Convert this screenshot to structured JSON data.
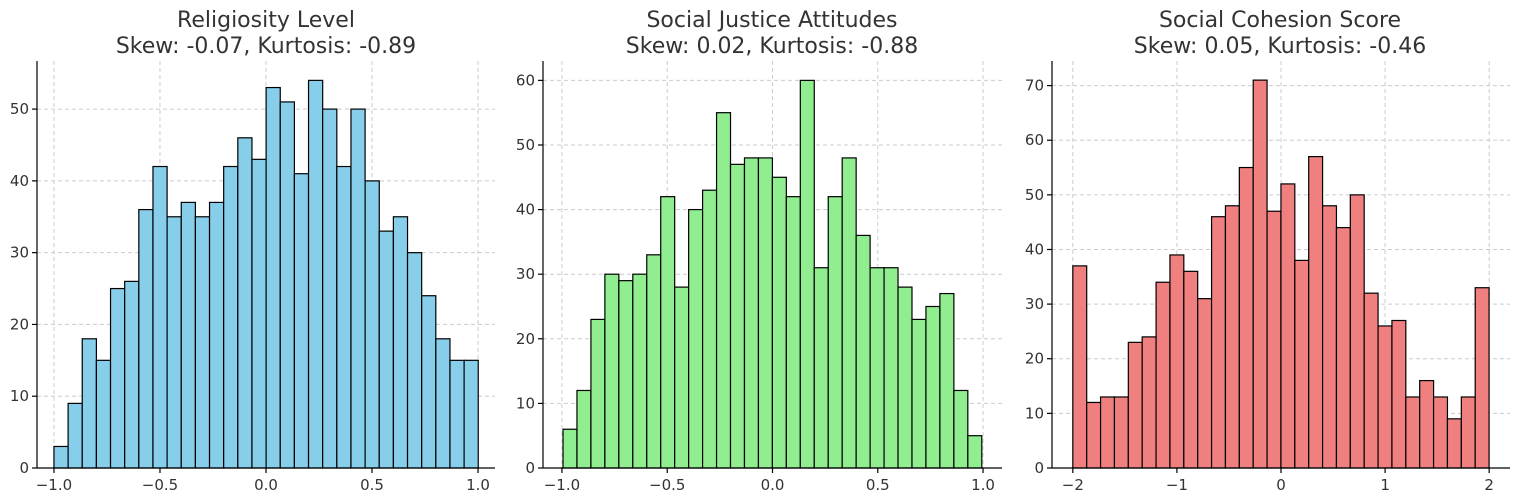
{
  "chart_data": [
    {
      "type": "bar",
      "title": "Religiosity Level",
      "subtitle": "Skew: -0.07, Kurtosis: -0.89",
      "bar_color": "#87ceeb",
      "bin_start": -1.0,
      "bin_width": 0.0667,
      "values": [
        3,
        9,
        18,
        15,
        25,
        26,
        36,
        42,
        35,
        37,
        35,
        37,
        42,
        46,
        43,
        53,
        51,
        41,
        54,
        50,
        42,
        50,
        40,
        33,
        35,
        30,
        24,
        18,
        15,
        15
      ],
      "xlim": [
        -1.08,
        1.08
      ],
      "ylim": [
        0,
        56.7
      ],
      "xticks": [
        -1.0,
        -0.5,
        0.0,
        0.5,
        1.0
      ],
      "xtick_labels": [
        "−1.0",
        "−0.5",
        "0.0",
        "0.5",
        "1.0"
      ],
      "yticks": [
        0,
        10,
        20,
        30,
        40,
        50
      ],
      "ytick_labels": [
        "0",
        "10",
        "20",
        "30",
        "40",
        "50"
      ],
      "grid": true
    },
    {
      "type": "bar",
      "title": "Social Justice Attitudes",
      "subtitle": "Skew: 0.02, Kurtosis: -0.88",
      "bar_color": "#90ee90",
      "bin_start": -0.995,
      "bin_width": 0.0663,
      "values": [
        6,
        12,
        23,
        30,
        29,
        30,
        33,
        42,
        28,
        40,
        43,
        55,
        47,
        48,
        48,
        45,
        42,
        60,
        31,
        42,
        48,
        36,
        31,
        31,
        28,
        23,
        25,
        27,
        12,
        5
      ],
      "xlim": [
        -1.09,
        1.09
      ],
      "ylim": [
        0,
        63
      ],
      "xticks": [
        -1.0,
        -0.5,
        0.0,
        0.5,
        1.0
      ],
      "xtick_labels": [
        "−1.0",
        "−0.5",
        "0.0",
        "0.5",
        "1.0"
      ],
      "yticks": [
        0,
        10,
        20,
        30,
        40,
        50,
        60
      ],
      "ytick_labels": [
        "0",
        "10",
        "20",
        "30",
        "40",
        "50",
        "60"
      ],
      "grid": true
    },
    {
      "type": "bar",
      "title": "Social Cohesion Score",
      "subtitle": "Skew: 0.05, Kurtosis: -0.46",
      "bar_color": "#f08080",
      "bin_start": -2.0,
      "bin_width": 0.1333,
      "values": [
        37,
        12,
        13,
        13,
        23,
        24,
        34,
        39,
        36,
        31,
        46,
        48,
        55,
        71,
        47,
        52,
        38,
        57,
        48,
        44,
        50,
        32,
        26,
        27,
        13,
        16,
        13,
        9,
        13,
        33
      ],
      "xlim": [
        -2.2,
        2.2
      ],
      "ylim": [
        0,
        74.5
      ],
      "xticks": [
        -2,
        -1,
        0,
        1,
        2
      ],
      "xtick_labels": [
        "−2",
        "−1",
        "0",
        "1",
        "2"
      ],
      "yticks": [
        0,
        10,
        20,
        30,
        40,
        50,
        60,
        70
      ],
      "ytick_labels": [
        "0",
        "10",
        "20",
        "30",
        "40",
        "50",
        "60",
        "70"
      ],
      "grid": true
    }
  ]
}
